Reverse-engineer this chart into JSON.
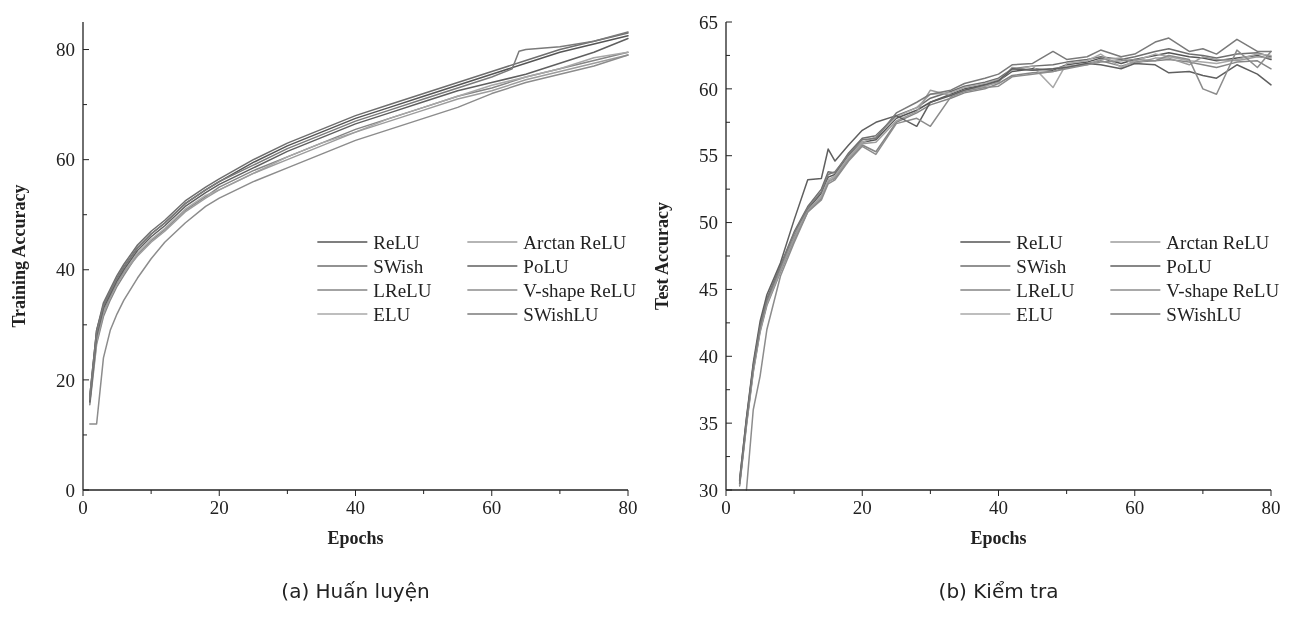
{
  "chart_data": [
    {
      "type": "line",
      "xlabel": "Epochs",
      "ylabel": "Training Accuracy",
      "annotations": [
        "(a) Huấn luyện"
      ],
      "legend": "right",
      "grid": false,
      "line_style": "solid",
      "marker": "none",
      "xlim": [
        0,
        80
      ],
      "ylim": [
        0,
        85
      ],
      "xticks": [
        0,
        {
          "value": 10,
          "label": null
        },
        20,
        {
          "value": 30,
          "label": null
        },
        40,
        {
          "value": 50,
          "label": null
        },
        60,
        {
          "value": 70,
          "label": null
        },
        80
      ],
      "yticks": [
        0,
        {
          "value": 10,
          "label": null
        },
        20,
        {
          "value": 30,
          "label": null
        },
        40,
        {
          "value": 50,
          "label": null
        },
        60,
        {
          "value": 70,
          "label": null
        },
        80
      ],
      "x": [
        1,
        2,
        3,
        4,
        5,
        6,
        8,
        10,
        12,
        15,
        18,
        20,
        25,
        30,
        35,
        40,
        45,
        50,
        55,
        60,
        65,
        70,
        75,
        80
      ],
      "series": [
        {
          "name": "ReLU",
          "color": "#555555",
          "values": [
            17,
            29,
            33.5,
            36,
            38.5,
            40.5,
            44,
            46.5,
            48.5,
            52,
            54.5,
            56,
            59.5,
            62.5,
            65,
            67.5,
            69.5,
            71.5,
            73.5,
            75.5,
            77.5,
            79.5,
            81,
            82.5
          ]
        },
        {
          "name": "SWish",
          "color": "#6e6e6e",
          "values": [
            17,
            29,
            34,
            36.5,
            39,
            41,
            44.5,
            47,
            49,
            52.5,
            55,
            56.5,
            60,
            63,
            65.5,
            68,
            70,
            72,
            74,
            76,
            78,
            80,
            81.5,
            83
          ]
        },
        {
          "name": "LReLU",
          "color": "#858585",
          "values": [
            15.5,
            26.5,
            31.5,
            34.5,
            37,
            39,
            42.8,
            45.3,
            47.3,
            50.8,
            53.3,
            55,
            58,
            60.5,
            63,
            65.5,
            67.5,
            69.5,
            71.5,
            73,
            75,
            76.5,
            78,
            79.5
          ]
        },
        {
          "name": "ELU",
          "color": "#a8a8a8",
          "values": [
            16.5,
            27.5,
            32.5,
            35,
            37.5,
            39.5,
            43,
            45.5,
            47.5,
            51,
            53.5,
            54.5,
            57.5,
            60.5,
            63,
            65,
            67.5,
            69.5,
            71.5,
            73.5,
            75,
            76.5,
            78.5,
            79.5
          ]
        },
        {
          "name": "Arctan ReLU",
          "color": "#9c9c9c",
          "values": [
            16,
            27,
            32,
            35,
            37.5,
            39.5,
            42.5,
            45,
            47,
            50.5,
            53,
            54.5,
            57.5,
            60,
            62.5,
            65,
            67,
            69,
            71,
            72.5,
            74.5,
            76,
            77.5,
            79
          ]
        },
        {
          "name": "PoLU",
          "color": "#5f5f5f",
          "values": [
            16,
            28,
            33,
            35.5,
            38,
            40,
            43.5,
            46,
            48,
            51.5,
            54,
            55.5,
            58.5,
            61.5,
            64,
            66.5,
            68.5,
            70.5,
            72.5,
            74,
            75.5,
            77.5,
            79.5,
            82
          ]
        },
        {
          "name": "V-shape ReLU",
          "color": "#8c8c8c",
          "values": [
            12,
            12,
            24,
            29,
            32,
            34.5,
            38.5,
            42,
            45,
            48.5,
            51.5,
            53,
            56,
            58.5,
            61,
            63.5,
            65.5,
            67.5,
            69.5,
            72,
            74,
            75.5,
            77,
            79
          ]
        },
        {
          "name": "SWishLU",
          "color": "#7a7a7a",
          "x": [
            1,
            2,
            3,
            4,
            5,
            6,
            8,
            10,
            12,
            15,
            18,
            20,
            25,
            30,
            35,
            40,
            45,
            50,
            55,
            60,
            63,
            64,
            65,
            70,
            75,
            80
          ],
          "values": [
            16.5,
            28.5,
            33.5,
            36,
            38.5,
            40.5,
            44,
            46.5,
            48.5,
            52,
            54.5,
            56,
            59,
            62,
            64.5,
            67,
            69,
            71,
            73,
            75,
            76.5,
            79.7,
            80,
            80.5,
            81.5,
            83.2
          ]
        }
      ]
    },
    {
      "type": "line",
      "xlabel": "Epochs",
      "ylabel": "Test Accuracy",
      "annotations": [
        "(b) Kiểm tra"
      ],
      "legend": "right",
      "grid": false,
      "line_style": "solid",
      "marker": "none",
      "xlim": [
        0,
        80
      ],
      "ylim": [
        30,
        65
      ],
      "xticks": [
        0,
        {
          "value": 10,
          "label": null
        },
        20,
        {
          "value": 30,
          "label": null
        },
        40,
        {
          "value": 50,
          "label": null
        },
        60,
        {
          "value": 70,
          "label": null
        },
        80
      ],
      "yticks": [
        30,
        {
          "value": 32.5,
          "label": null
        },
        35,
        {
          "value": 37.5,
          "label": null
        },
        40,
        {
          "value": 42.5,
          "label": null
        },
        45,
        {
          "value": 47.5,
          "label": null
        },
        50,
        {
          "value": 52.5,
          "label": null
        },
        55,
        {
          "value": 57.5,
          "label": null
        },
        60,
        {
          "value": 62.5,
          "label": null
        },
        65
      ],
      "x": [
        2,
        3,
        4,
        5,
        6,
        8,
        10,
        12,
        14,
        15,
        16,
        18,
        20,
        22,
        25,
        28,
        30,
        33,
        35,
        38,
        40,
        42,
        45,
        48,
        50,
        53,
        55,
        58,
        60,
        63,
        65,
        68,
        70,
        72,
        75,
        78,
        80
      ],
      "series": [
        {
          "name": "ReLU",
          "color": "#555555",
          "values": [
            30.5,
            35,
            39,
            42,
            44,
            46.5,
            49,
            51,
            52.2,
            53.4,
            53.6,
            55,
            56,
            56.2,
            57.8,
            58.4,
            59,
            59.6,
            60,
            60.3,
            60.6,
            61.3,
            61.5,
            61.4,
            61.8,
            62,
            62.3,
            61.9,
            62.2,
            62.5,
            62.7,
            62.4,
            62.3,
            62.1,
            62.3,
            62.5,
            62.2
          ]
        },
        {
          "name": "SWish",
          "color": "#6e6e6e",
          "values": [
            30.8,
            35.3,
            39.3,
            42.3,
            44.3,
            46.8,
            49.3,
            51.2,
            52.5,
            53.8,
            53.7,
            55.2,
            56.3,
            56.5,
            58,
            58.6,
            59.3,
            59.8,
            60.2,
            60.5,
            60.8,
            61.5,
            61.7,
            61.8,
            62,
            62.2,
            62.4,
            62.2,
            62.4,
            62.8,
            63,
            62.6,
            62.5,
            62.3,
            62.6,
            62.7,
            62.4
          ]
        },
        {
          "name": "LReLU",
          "color": "#858585",
          "values": [
            30.3,
            34.8,
            38.8,
            41.8,
            43.8,
            46.3,
            48.7,
            50.8,
            51.8,
            53.1,
            53.3,
            54.7,
            55.8,
            55.3,
            57.5,
            58.2,
            58.8,
            59.3,
            59.7,
            60,
            60.4,
            61,
            61.2,
            61.3,
            61.6,
            61.9,
            62.1,
            61.7,
            62,
            62.1,
            62.2,
            62,
            61.8,
            61.6,
            62,
            62.1,
            61.5
          ]
        },
        {
          "name": "ELU",
          "color": "#a8a8a8",
          "values": [
            30.6,
            35.1,
            39.1,
            42.1,
            44.1,
            46.6,
            49.1,
            50.9,
            52,
            53.2,
            53.5,
            54.9,
            56,
            56.4,
            57.9,
            58.6,
            59.6,
            59.7,
            60.1,
            60.4,
            60.7,
            61.4,
            61.7,
            60.1,
            61.9,
            62.1,
            62.6,
            61.6,
            62.1,
            62.6,
            62.4,
            62.1,
            62,
            61.9,
            62.2,
            62.6,
            62.5
          ]
        },
        {
          "name": "Arctan ReLU",
          "color": "#9c9c9c",
          "values": [
            30.4,
            34.9,
            38.9,
            41.9,
            43.9,
            46.4,
            48.8,
            50.9,
            51.9,
            53,
            53.4,
            54.8,
            55.9,
            56,
            57.6,
            58.3,
            59.9,
            59.5,
            59.9,
            60.2,
            60.5,
            61.6,
            61.4,
            61.5,
            61.7,
            61.8,
            62.2,
            62.3,
            61.9,
            62.3,
            62.3,
            61.8,
            62.4,
            62.2,
            62.1,
            62.4,
            62.3
          ]
        },
        {
          "name": "PoLU",
          "color": "#5f5f5f",
          "values": [
            30.7,
            35.4,
            39.5,
            42.6,
            44.6,
            47,
            50.2,
            53.2,
            53.3,
            55.5,
            54.6,
            55.8,
            56.9,
            57.5,
            58,
            57.2,
            59,
            59.5,
            59.9,
            60.3,
            60.6,
            61.5,
            61.4,
            61.5,
            61.6,
            61.9,
            61.8,
            61.5,
            61.9,
            61.8,
            61.2,
            61.3,
            61,
            60.8,
            61.8,
            61.1,
            60.3
          ]
        },
        {
          "name": "V-shape ReLU",
          "color": "#8c8c8c",
          "values": [
            null,
            30,
            36,
            38.5,
            42,
            46,
            48.5,
            50.8,
            51.7,
            52.9,
            53.2,
            54.6,
            55.7,
            55.1,
            57.4,
            57.8,
            57.2,
            59.4,
            59.8,
            60.1,
            60.2,
            60.9,
            61.1,
            61.3,
            61.5,
            61.8,
            62,
            62.1,
            62.2,
            62.1,
            62.5,
            62.2,
            60,
            59.6,
            62.9,
            61.6,
            62.8
          ]
        },
        {
          "name": "SWishLU",
          "color": "#7a7a7a",
          "values": [
            30.5,
            35.1,
            39.2,
            42.2,
            44.2,
            46.7,
            49.2,
            51.1,
            52.3,
            53.6,
            53.8,
            55.1,
            56.2,
            56.3,
            58.2,
            59,
            59.6,
            59.9,
            60.4,
            60.8,
            61.1,
            61.8,
            61.9,
            62.8,
            62.2,
            62.4,
            62.9,
            62.4,
            62.6,
            63.5,
            63.8,
            62.8,
            63,
            62.6,
            63.7,
            62.8,
            62.8
          ]
        }
      ]
    }
  ]
}
